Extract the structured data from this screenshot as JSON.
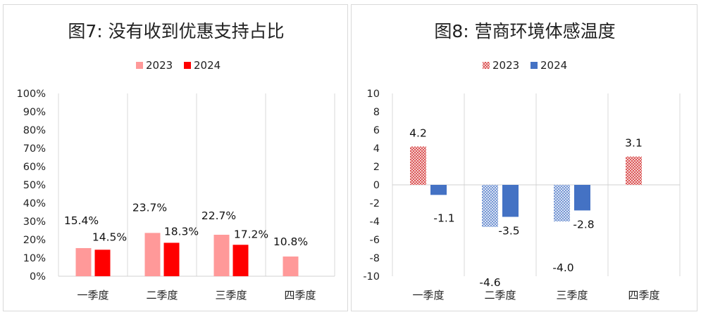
{
  "chart_data": [
    {
      "type": "bar",
      "title": "图7: 没有收到优惠支持占比",
      "categories": [
        "一季度",
        "二季度",
        "三季度",
        "四季度"
      ],
      "series": [
        {
          "name": "2023",
          "values": [
            15.4,
            23.7,
            22.7,
            10.8
          ],
          "color": "#ff9999",
          "labels": [
            "15.4%",
            "23.7%",
            "22.7%",
            "10.8%"
          ]
        },
        {
          "name": "2024",
          "values": [
            14.5,
            18.3,
            17.2,
            null
          ],
          "color": "#ff0000",
          "labels": [
            "14.5%",
            "18.3%",
            "17.2%",
            null
          ]
        }
      ],
      "ylim": [
        0,
        100
      ],
      "yticks": [
        0,
        10,
        20,
        30,
        40,
        50,
        60,
        70,
        80,
        90,
        100
      ],
      "ytick_labels": [
        "0%",
        "10%",
        "20%",
        "30%",
        "40%",
        "50%",
        "60%",
        "70%",
        "80%",
        "90%",
        "100%"
      ],
      "legend": "top-center",
      "grid": "vertical category separators"
    },
    {
      "type": "bar",
      "title": "图8: 营商环境体感温度",
      "categories": [
        "一季度",
        "二季度",
        "三季度",
        "四季度"
      ],
      "series": [
        {
          "name": "2023",
          "values": [
            4.2,
            -4.6,
            -4.0,
            3.1
          ],
          "color": "#e05a5a",
          "pattern": "crosshatch",
          "labels": [
            "4.2",
            "-4.6",
            "-4.0",
            "3.1"
          ]
        },
        {
          "name": "2024",
          "values": [
            -1.1,
            -3.5,
            -2.8,
            null
          ],
          "color": "#4472c4",
          "labels": [
            "-1.1",
            "-3.5",
            "-2.8",
            null
          ]
        }
      ],
      "ylim": [
        -10,
        10
      ],
      "yticks": [
        -10,
        -8,
        -6,
        -4,
        -2,
        0,
        2,
        4,
        6,
        8,
        10
      ],
      "ytick_labels": [
        "-10",
        "-8",
        "-6",
        "-4",
        "-2",
        "0",
        "2",
        "4",
        "6",
        "8",
        "10"
      ],
      "legend": "top-center",
      "grid": "vertical category separators"
    }
  ]
}
